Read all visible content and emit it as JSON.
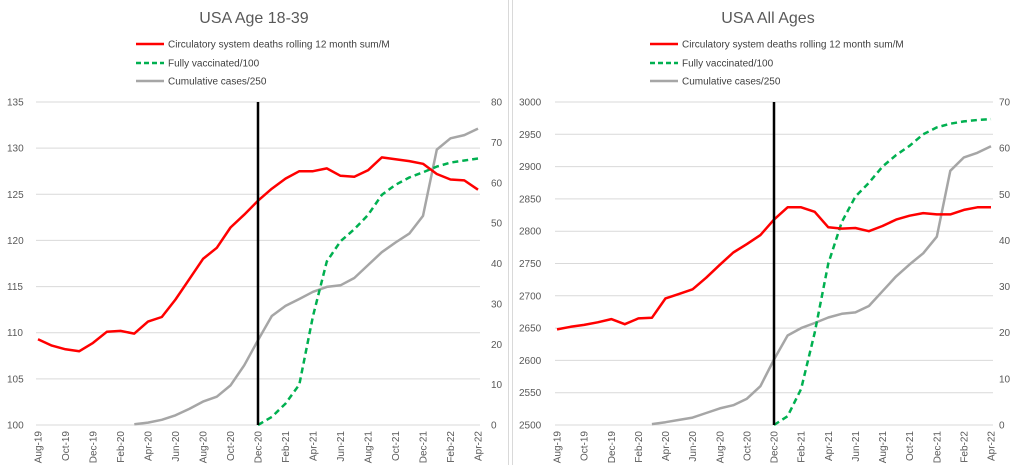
{
  "chart_data": [
    {
      "type": "line",
      "title": "USA Age 18-39",
      "legend_placement": "top-center",
      "grid": true,
      "x": [
        "Aug-19",
        "Sep-19",
        "Oct-19",
        "Nov-19",
        "Dec-19",
        "Jan-20",
        "Feb-20",
        "Mar-20",
        "Apr-20",
        "May-20",
        "Jun-20",
        "Jul-20",
        "Aug-20",
        "Sep-20",
        "Oct-20",
        "Nov-20",
        "Dec-20",
        "Jan-21",
        "Feb-21",
        "Mar-21",
        "Apr-21",
        "May-21",
        "Jun-21",
        "Jul-21",
        "Aug-21",
        "Sep-21",
        "Oct-21",
        "Nov-21",
        "Dec-21",
        "Jan-22",
        "Feb-22",
        "Mar-22",
        "Apr-22"
      ],
      "x_tick_labels": [
        "Aug-19",
        "Oct-19",
        "Dec-19",
        "Feb-20",
        "Apr-20",
        "Jun-20",
        "Aug-20",
        "Oct-20",
        "Dec-20",
        "Feb-21",
        "Apr-21",
        "Jun-21",
        "Aug-21",
        "Oct-21",
        "Dec-21",
        "Feb-22",
        "Apr-22"
      ],
      "y_left": {
        "range": [
          100,
          135
        ],
        "ticks": [
          100,
          105,
          110,
          115,
          120,
          125,
          130,
          135
        ]
      },
      "y_right": {
        "range": [
          0,
          80
        ],
        "ticks": [
          0,
          10,
          20,
          30,
          40,
          50,
          60,
          70,
          80
        ]
      },
      "vertical_marker": "Dec-20",
      "series": [
        {
          "name": "Circulatory system deaths rolling 12 month sum/M",
          "axis": "left",
          "color": "#ff0000",
          "style": "solid",
          "values": [
            109.3,
            108.6,
            108.2,
            108.0,
            108.9,
            110.1,
            110.2,
            109.9,
            111.2,
            111.7,
            113.6,
            115.8,
            118.0,
            119.2,
            121.4,
            122.8,
            124.3,
            125.6,
            126.7,
            127.5,
            127.5,
            127.8,
            127.0,
            126.9,
            127.6,
            129.0,
            128.8,
            128.6,
            128.3,
            127.2,
            126.6,
            126.5,
            125.5
          ]
        },
        {
          "name": "Fully vaccinated/100",
          "axis": "right",
          "color": "#00b050",
          "style": "dashed",
          "values": [
            null,
            null,
            null,
            null,
            null,
            null,
            null,
            null,
            null,
            null,
            null,
            null,
            null,
            null,
            null,
            null,
            0,
            2.0,
            5.3,
            10.0,
            27.0,
            40.5,
            45.5,
            48.5,
            52.0,
            57.0,
            59.5,
            61.3,
            62.6,
            64.0,
            65.0,
            65.5,
            66.0
          ]
        },
        {
          "name": "Cumulative cases/250",
          "axis": "right",
          "color": "#a6a6a6",
          "style": "solid",
          "values": [
            null,
            null,
            null,
            null,
            null,
            null,
            null,
            0.2,
            0.6,
            1.3,
            2.4,
            4.0,
            5.8,
            7.0,
            9.8,
            14.8,
            21.0,
            27.0,
            29.5,
            31.2,
            33.0,
            34.2,
            34.6,
            36.4,
            39.6,
            42.8,
            45.2,
            47.4,
            51.8,
            68.2,
            71.0,
            71.8,
            73.4
          ]
        }
      ]
    },
    {
      "type": "line",
      "title": "USA All Ages",
      "legend_placement": "top-center",
      "grid": true,
      "x": [
        "Aug-19",
        "Sep-19",
        "Oct-19",
        "Nov-19",
        "Dec-19",
        "Jan-20",
        "Feb-20",
        "Mar-20",
        "Apr-20",
        "May-20",
        "Jun-20",
        "Jul-20",
        "Aug-20",
        "Sep-20",
        "Oct-20",
        "Nov-20",
        "Dec-20",
        "Jan-21",
        "Feb-21",
        "Mar-21",
        "Apr-21",
        "May-21",
        "Jun-21",
        "Jul-21",
        "Aug-21",
        "Sep-21",
        "Oct-21",
        "Nov-21",
        "Dec-21",
        "Jan-22",
        "Feb-22",
        "Mar-22",
        "Apr-22"
      ],
      "x_tick_labels": [
        "Aug-19",
        "Oct-19",
        "Dec-19",
        "Feb-20",
        "Apr-20",
        "Jun-20",
        "Aug-20",
        "Oct-20",
        "Dec-20",
        "Feb-21",
        "Apr-21",
        "Jun-21",
        "Aug-21",
        "Oct-21",
        "Dec-21",
        "Feb-22",
        "Apr-22"
      ],
      "y_left": {
        "range": [
          2500,
          3000
        ],
        "ticks": [
          2500,
          2550,
          2600,
          2650,
          2700,
          2750,
          2800,
          2850,
          2900,
          2950,
          3000
        ]
      },
      "y_right": {
        "range": [
          0,
          70
        ],
        "ticks": [
          0,
          10,
          20,
          30,
          40,
          50,
          60,
          70
        ]
      },
      "vertical_marker": "Dec-20",
      "series": [
        {
          "name": "Circulatory system deaths rolling 12 month sum/M",
          "axis": "left",
          "color": "#ff0000",
          "style": "solid",
          "values": [
            2648,
            2652,
            2655,
            2659,
            2664,
            2656,
            2665,
            2666,
            2696,
            2703,
            2710,
            2728,
            2748,
            2767,
            2780,
            2794,
            2818,
            2837,
            2837,
            2830,
            2806,
            2804,
            2805,
            2800,
            2808,
            2818,
            2824,
            2828,
            2826,
            2826,
            2833,
            2837,
            2837
          ]
        },
        {
          "name": "Fully vaccinated/100",
          "axis": "right",
          "color": "#00b050",
          "style": "dashed",
          "values": [
            null,
            null,
            null,
            null,
            null,
            null,
            null,
            null,
            null,
            null,
            null,
            null,
            null,
            null,
            null,
            null,
            0,
            1.9,
            7.8,
            20.0,
            35.0,
            44.0,
            49.5,
            52.5,
            56.0,
            58.5,
            60.5,
            63.0,
            64.5,
            65.3,
            65.8,
            66.1,
            66.3
          ]
        },
        {
          "name": "Cumulative cases/250",
          "axis": "right",
          "color": "#a6a6a6",
          "style": "solid",
          "values": [
            null,
            null,
            null,
            null,
            null,
            null,
            null,
            0.2,
            0.6,
            1.1,
            1.6,
            2.6,
            3.6,
            4.3,
            5.7,
            8.4,
            14.2,
            19.4,
            21.0,
            22.1,
            23.3,
            24.1,
            24.4,
            25.8,
            29.0,
            32.2,
            34.8,
            37.2,
            40.8,
            55.1,
            58.0,
            59.0,
            60.4
          ]
        }
      ]
    }
  ]
}
